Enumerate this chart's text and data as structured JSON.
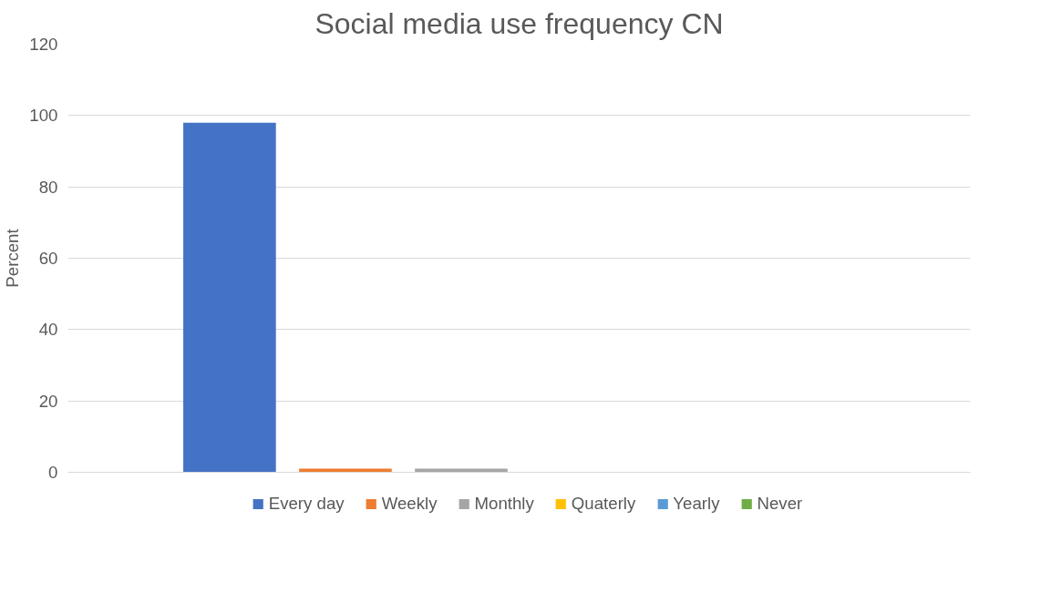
{
  "chart_data": {
    "type": "bar",
    "title": "Social media use frequency CN",
    "ylabel": "Percent",
    "categories": [
      null
    ],
    "series": [
      {
        "name": "Every day",
        "color": "#4472c4",
        "values": [
          98
        ]
      },
      {
        "name": "Weekly",
        "color": "#ed7d31",
        "values": [
          1
        ]
      },
      {
        "name": "Monthly",
        "color": "#a5a5a5",
        "values": [
          1
        ]
      },
      {
        "name": "Quaterly",
        "color": "#ffc000",
        "values": [
          0
        ]
      },
      {
        "name": "Yearly",
        "color": "#5b9bd5",
        "values": [
          0
        ]
      },
      {
        "name": "Never",
        "color": "#70ad47",
        "values": [
          0
        ]
      }
    ],
    "ylim": [
      0,
      120
    ],
    "yticks": [
      0,
      20,
      40,
      60,
      80,
      100,
      120
    ],
    "grid": "y",
    "legend": "bottom"
  }
}
